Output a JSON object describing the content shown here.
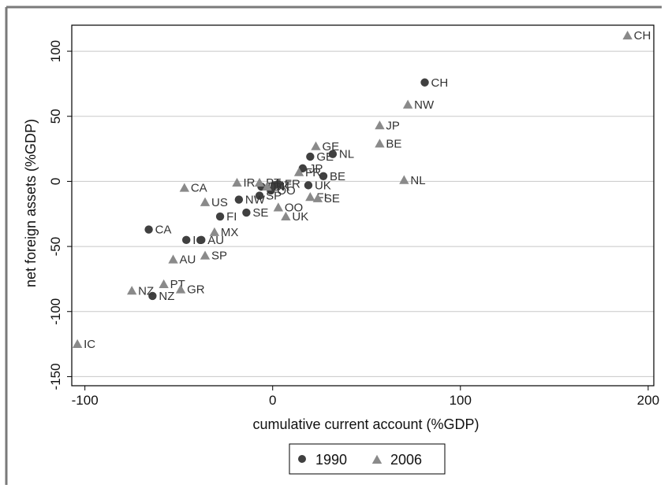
{
  "chart_data": {
    "type": "scatter",
    "xlabel": "cumulative current account (%GDP)",
    "ylabel": "net foreign assets (%GDP)",
    "xlim": [
      -107,
      203
    ],
    "ylim": [
      -157,
      120
    ],
    "xticks": [
      -100,
      0,
      100,
      200
    ],
    "yticks": [
      100,
      50,
      0,
      -50,
      -100,
      -150
    ],
    "grid": "horizontal",
    "legend_position": "bottom",
    "colors": {
      "s1990": "#404040",
      "s2006": "#8a8a8a",
      "grid": "#c8c8c8",
      "frame": "#7a7a7a"
    },
    "series": [
      {
        "name": "1990",
        "marker": "circle",
        "points": [
          {
            "label": "CH",
            "x": 81,
            "y": 76
          },
          {
            "label": "GE",
            "x": 20,
            "y": 19
          },
          {
            "label": "NL",
            "x": 32,
            "y": 21
          },
          {
            "label": "JP",
            "x": 16,
            "y": 10
          },
          {
            "label": "BE",
            "x": 27,
            "y": 4
          },
          {
            "label": "UK",
            "x": 19,
            "y": -3
          },
          {
            "label": "IT",
            "x": 1,
            "y": -3
          },
          {
            "label": "FR",
            "x": 3,
            "y": -2
          },
          {
            "label": "DK",
            "x": -6,
            "y": -4
          },
          {
            "label": "OO",
            "x": -1,
            "y": -7
          },
          {
            "label": "SP",
            "x": -7,
            "y": -11
          },
          {
            "label": "NW",
            "x": -18,
            "y": -14
          },
          {
            "label": "SE",
            "x": -14,
            "y": -24
          },
          {
            "label": "FI",
            "x": -28,
            "y": -27
          },
          {
            "label": "CA",
            "x": -66,
            "y": -37
          },
          {
            "label": "IC",
            "x": -46,
            "y": -45
          },
          {
            "label": "AU",
            "x": -38,
            "y": -45
          },
          {
            "label": "NZ",
            "x": -64,
            "y": -88
          }
        ]
      },
      {
        "name": "2006",
        "marker": "triangle",
        "points": [
          {
            "label": "CH",
            "x": 189,
            "y": 112
          },
          {
            "label": "NW",
            "x": 72,
            "y": 59
          },
          {
            "label": "JP",
            "x": 57,
            "y": 43
          },
          {
            "label": "BE",
            "x": 57,
            "y": 29
          },
          {
            "label": "GE",
            "x": 23,
            "y": 27
          },
          {
            "label": "NL",
            "x": 70,
            "y": 1
          },
          {
            "label": "FR",
            "x": 14,
            "y": 7
          },
          {
            "label": "IR",
            "x": -19,
            "y": -1
          },
          {
            "label": "PT",
            "x": -7,
            "y": -1
          },
          {
            "label": "DK",
            "x": -3,
            "y": -4
          },
          {
            "label": "CA",
            "x": -47,
            "y": -5
          },
          {
            "label": "US",
            "x": -36,
            "y": -16
          },
          {
            "label": "FI",
            "x": 20,
            "y": -12
          },
          {
            "label": "SE",
            "x": 24,
            "y": -13
          },
          {
            "label": "OO",
            "x": 3,
            "y": -20
          },
          {
            "label": "UK",
            "x": 7,
            "y": -27
          },
          {
            "label": "MX",
            "x": -31,
            "y": -39
          },
          {
            "label": "AU",
            "x": -53,
            "y": -60
          },
          {
            "label": "SP",
            "x": -36,
            "y": -57
          },
          {
            "label": "PT",
            "x": -58,
            "y": -79
          },
          {
            "label": "GR",
            "x": -49,
            "y": -83
          },
          {
            "label": "NZ",
            "x": -75,
            "y": -84
          },
          {
            "label": "IC",
            "x": -104,
            "y": -125
          }
        ]
      }
    ]
  }
}
